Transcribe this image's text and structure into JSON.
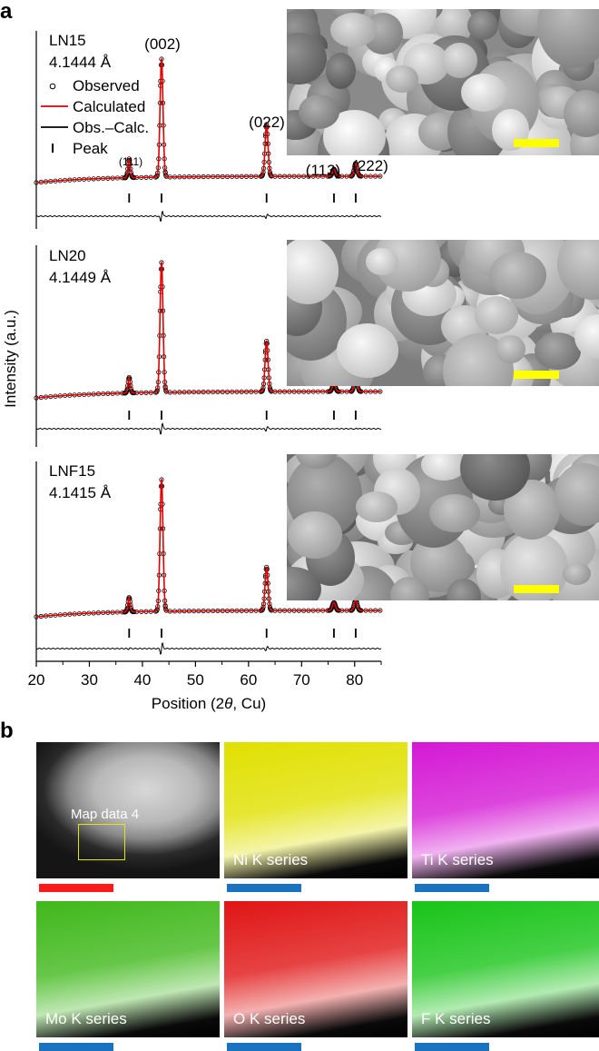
{
  "panel_a": {
    "letter": "a",
    "ylabel": "Intensity (a.u.)",
    "xlabel": "Position (2θ, Cu)"
  },
  "panel_b": {
    "letter": "b",
    "maps": [
      {
        "label": "",
        "overlay": "Map data 4",
        "kind": "haadf",
        "scale_color": "#ff1a1a"
      },
      {
        "label": "Ni K series",
        "kind": "element",
        "color": "#e0e000",
        "scale_color": "#1a73c0"
      },
      {
        "label": "Ti K series",
        "kind": "element",
        "color": "#d418d4",
        "scale_color": "#1a73c0"
      },
      {
        "label": "Mo K series",
        "kind": "element",
        "color": "#3fb81a",
        "scale_color": "#1a73c0"
      },
      {
        "label": "O K series",
        "kind": "element",
        "color": "#e01414",
        "scale_color": "#1a73c0"
      },
      {
        "label": "F K series",
        "kind": "element",
        "color": "#18c418",
        "scale_color": "#1a73c0"
      }
    ]
  },
  "colors": {
    "observed": "#000000",
    "calculated": "#e00000",
    "difference": "#000000",
    "scale_bar_sem": "#ffff00"
  },
  "chart_data": {
    "type": "line",
    "xlim": [
      20,
      85
    ],
    "xticks": [
      20,
      30,
      40,
      50,
      60,
      70,
      80
    ],
    "xlabel": "Position (2θ, Cu)",
    "ylabel": "Intensity (a.u.)",
    "legend": [
      "Observed",
      "Calculated",
      "Obs.–Calc.",
      "Peak"
    ],
    "legend_placement": "top-left of first subplot",
    "peaks": [
      {
        "hkl": "(111)",
        "two_theta": 37.5
      },
      {
        "hkl": "(002)",
        "two_theta": 43.6
      },
      {
        "hkl": "(022)",
        "two_theta": 63.4
      },
      {
        "hkl": "(113)",
        "two_theta": 76.1
      },
      {
        "hkl": "(222)",
        "two_theta": 80.2
      }
    ],
    "samples": [
      {
        "name": "LN15",
        "lattice": "4.1444 Å",
        "relative_heights": [
          0.16,
          1.0,
          0.44,
          0.06,
          0.11
        ]
      },
      {
        "name": "LN20",
        "lattice": "4.1449 Å",
        "relative_heights": [
          0.12,
          1.0,
          0.39,
          0.06,
          0.11
        ]
      },
      {
        "name": "LNF15",
        "lattice": "4.1415 Å",
        "relative_heights": [
          0.11,
          1.0,
          0.33,
          0.06,
          0.08
        ]
      }
    ]
  }
}
